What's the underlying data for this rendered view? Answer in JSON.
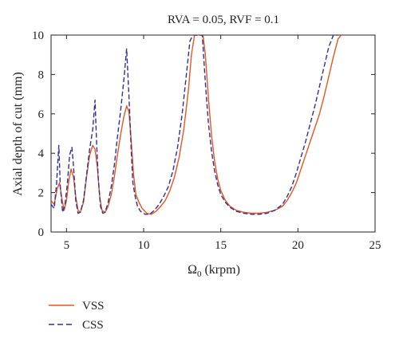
{
  "chart_data": {
    "type": "line",
    "title": "RVA = 0.05, RVF = 0.1",
    "xlabel_main": "Ω",
    "xlabel_sub": "0",
    "xlabel_unit": " (krpm)",
    "ylabel": "Axial depth of cut (mm)",
    "xlim": [
      4,
      25
    ],
    "ylim": [
      0,
      10
    ],
    "xticks": [
      5,
      10,
      15,
      20,
      25
    ],
    "yticks": [
      0,
      2,
      4,
      6,
      8,
      10
    ],
    "grid": false,
    "legend_position": "bottom-left, below plot",
    "series": [
      {
        "name": "VSS",
        "color": "#e8561e",
        "dash": "solid",
        "x": [
          4.0,
          4.2,
          4.4,
          4.55,
          4.7,
          4.85,
          5.0,
          5.15,
          5.3,
          5.45,
          5.6,
          5.75,
          5.9,
          6.1,
          6.3,
          6.5,
          6.7,
          6.85,
          7.0,
          7.15,
          7.3,
          7.5,
          7.7,
          7.9,
          8.1,
          8.3,
          8.5,
          8.7,
          8.9,
          9.05,
          9.2,
          9.35,
          9.5,
          9.7,
          9.9,
          10.2,
          10.5,
          10.8,
          11.1,
          11.4,
          11.7,
          12.0,
          12.3,
          12.6,
          12.9,
          13.1,
          13.3,
          13.5,
          13.7,
          13.85,
          14.0,
          14.2,
          14.4,
          14.6,
          14.8,
          15.0,
          15.3,
          15.6,
          16.0,
          16.5,
          17.0,
          17.5,
          18.0,
          18.5,
          19.0,
          19.3,
          19.6,
          19.9,
          20.2,
          20.5,
          20.8,
          21.1,
          21.4,
          21.7,
          22.0,
          22.3,
          22.6,
          22.8
        ],
        "y": [
          1.6,
          1.4,
          2.2,
          2.5,
          1.7,
          1.1,
          1.6,
          2.6,
          3.2,
          2.8,
          1.8,
          1.1,
          1.0,
          1.5,
          2.8,
          3.9,
          4.4,
          4.2,
          3.3,
          1.8,
          1.1,
          1.0,
          1.3,
          1.9,
          2.8,
          3.9,
          4.9,
          5.8,
          6.4,
          6.1,
          4.6,
          2.9,
          1.9,
          1.5,
          1.2,
          0.95,
          0.9,
          1.05,
          1.3,
          1.6,
          2.1,
          2.8,
          3.8,
          5.2,
          7.2,
          9.0,
          10.0,
          10.0,
          10.0,
          10.0,
          9.0,
          6.8,
          4.9,
          3.6,
          2.7,
          2.1,
          1.6,
          1.3,
          1.1,
          1.0,
          0.95,
          0.95,
          1.0,
          1.1,
          1.3,
          1.6,
          2.0,
          2.5,
          3.2,
          3.9,
          4.6,
          5.3,
          6.0,
          6.9,
          7.9,
          8.9,
          9.8,
          10.0
        ]
      },
      {
        "name": "CSS",
        "color": "#2e2e9e",
        "dash": "dashed",
        "x": [
          4.0,
          4.2,
          4.35,
          4.5,
          4.6,
          4.75,
          4.9,
          5.05,
          5.2,
          5.35,
          5.45,
          5.6,
          5.75,
          5.9,
          6.1,
          6.3,
          6.5,
          6.7,
          6.85,
          6.95,
          7.05,
          7.2,
          7.35,
          7.5,
          7.7,
          7.9,
          8.1,
          8.3,
          8.5,
          8.7,
          8.9,
          9.05,
          9.2,
          9.3,
          9.45,
          9.6,
          9.8,
          10.1,
          10.4,
          10.7,
          11.0,
          11.3,
          11.6,
          11.9,
          12.2,
          12.5,
          12.8,
          13.0,
          13.2,
          13.4,
          13.6,
          13.8,
          14.0,
          14.2,
          14.4,
          14.6,
          14.8,
          15.0,
          15.3,
          15.6,
          16.0,
          16.5,
          17.0,
          17.5,
          18.0,
          18.5,
          19.0,
          19.3,
          19.6,
          19.9,
          20.2,
          20.5,
          20.8,
          21.1,
          21.4,
          21.7,
          22.0,
          22.3,
          22.6
        ],
        "y": [
          1.4,
          1.2,
          2.4,
          4.4,
          2.3,
          1.0,
          1.4,
          2.4,
          3.9,
          4.3,
          3.4,
          1.6,
          0.95,
          1.0,
          1.6,
          2.9,
          4.2,
          5.2,
          6.7,
          4.6,
          2.8,
          1.3,
          0.95,
          1.0,
          1.5,
          2.3,
          3.4,
          4.8,
          6.1,
          7.6,
          9.3,
          6.9,
          4.1,
          2.5,
          1.8,
          1.3,
          1.05,
          0.9,
          0.9,
          1.1,
          1.4,
          1.8,
          2.3,
          3.1,
          4.3,
          6.0,
          8.2,
          9.7,
          10.0,
          10.0,
          10.0,
          10.0,
          7.6,
          5.5,
          4.1,
          3.1,
          2.4,
          1.9,
          1.5,
          1.25,
          1.05,
          0.95,
          0.9,
          0.9,
          0.95,
          1.1,
          1.4,
          1.8,
          2.3,
          3.0,
          3.8,
          4.6,
          5.5,
          6.4,
          7.4,
          8.4,
          9.4,
          10.0,
          10.0
        ]
      }
    ]
  }
}
